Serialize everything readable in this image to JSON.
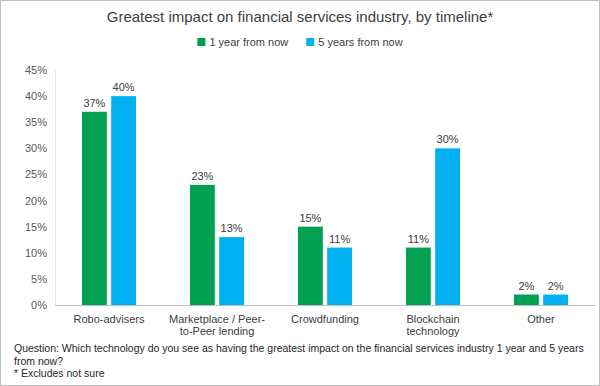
{
  "chart_data": {
    "type": "bar",
    "title": "Greatest impact on financial services industry, by timeline*",
    "categories": [
      "Robo-advisers",
      "Marketplace / Peer-to-Peer lending",
      "Crowdfunding",
      "Blockchain technology",
      "Other"
    ],
    "series": [
      {
        "name": "1 year from now",
        "color": "#00a050",
        "values": [
          37,
          23,
          15,
          11,
          2
        ],
        "value_labels": [
          "37%",
          "23%",
          "15%",
          "11%",
          "2%"
        ]
      },
      {
        "name": "5 years from now",
        "color": "#00b0f0",
        "values": [
          40,
          13,
          11,
          30,
          2
        ],
        "value_labels": [
          "40%",
          "13%",
          "11%",
          "30%",
          "2%"
        ]
      }
    ],
    "ylim": [
      0,
      45
    ],
    "yticks": [
      {
        "value": 0,
        "label": "0%"
      },
      {
        "value": 5,
        "label": "5%"
      },
      {
        "value": 10,
        "label": "10%"
      },
      {
        "value": 15,
        "label": "15%"
      },
      {
        "value": 20,
        "label": "20%"
      },
      {
        "value": 25,
        "label": "25%"
      },
      {
        "value": 30,
        "label": "30%"
      },
      {
        "value": 35,
        "label": "35%"
      },
      {
        "value": 40,
        "label": "40%"
      },
      {
        "value": 45,
        "label": "45%"
      }
    ],
    "grid": false,
    "legend": "top",
    "data_labels": true,
    "annotations": [
      "Question: Which technology do you see as having the greatest impact on the financial services industry 1 year and 5 years from now?",
      "* Excludes not sure"
    ]
  }
}
